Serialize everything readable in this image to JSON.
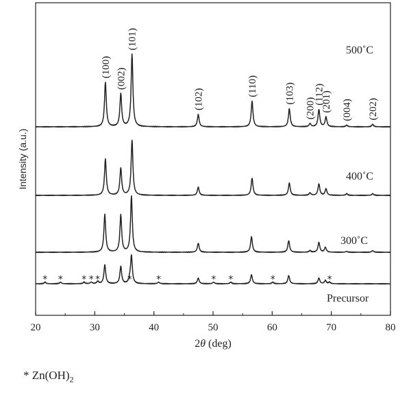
{
  "chart_data": {
    "type": "line",
    "title": "",
    "xlabel_prefix": "2",
    "xlabel_symbol": "θ",
    "xlabel_suffix": " (deg)",
    "ylabel": "Intensity (a.u.)",
    "xlim": [
      20,
      80
    ],
    "xticks": [
      20,
      30,
      40,
      50,
      60,
      70,
      80
    ],
    "grid": false,
    "series": [
      {
        "name": "500˚C",
        "offset": 0.0,
        "peaks": [
          [
            31.8,
            0.54
          ],
          [
            34.4,
            0.4
          ],
          [
            36.3,
            0.88
          ],
          [
            47.5,
            0.15
          ],
          [
            56.6,
            0.31
          ],
          [
            62.9,
            0.22
          ],
          [
            66.4,
            0.04
          ],
          [
            67.9,
            0.21
          ],
          [
            69.1,
            0.12
          ],
          [
            72.6,
            0.02
          ],
          [
            77.0,
            0.03
          ]
        ]
      },
      {
        "name": "400˚C",
        "offset": 0.0,
        "peaks": [
          [
            31.8,
            0.44
          ],
          [
            34.4,
            0.33
          ],
          [
            36.3,
            0.67
          ],
          [
            47.5,
            0.1
          ],
          [
            56.6,
            0.21
          ],
          [
            62.9,
            0.15
          ],
          [
            66.4,
            0.03
          ],
          [
            67.9,
            0.14
          ],
          [
            69.1,
            0.08
          ],
          [
            72.6,
            0.02
          ],
          [
            77.0,
            0.02
          ]
        ]
      },
      {
        "name": "300˚C",
        "offset": 0.0,
        "peaks": [
          [
            31.7,
            0.46
          ],
          [
            34.4,
            0.45
          ],
          [
            36.2,
            0.68
          ],
          [
            47.5,
            0.11
          ],
          [
            56.5,
            0.19
          ],
          [
            62.8,
            0.14
          ],
          [
            66.4,
            0.02
          ],
          [
            67.9,
            0.12
          ],
          [
            69.0,
            0.06
          ],
          [
            72.6,
            0.01
          ],
          [
            77.0,
            0.02
          ]
        ]
      },
      {
        "name": "Precursor",
        "offset": 0.0,
        "peaks": [
          [
            21.6,
            0.02
          ],
          [
            24.2,
            0.02
          ],
          [
            28.2,
            0.02
          ],
          [
            29.4,
            0.02
          ],
          [
            30.5,
            0.03
          ],
          [
            31.7,
            0.23
          ],
          [
            34.4,
            0.21
          ],
          [
            35.9,
            0.04
          ],
          [
            36.2,
            0.34
          ],
          [
            40.8,
            0.02
          ],
          [
            47.5,
            0.07
          ],
          [
            50.1,
            0.02
          ],
          [
            53.0,
            0.02
          ],
          [
            56.5,
            0.11
          ],
          [
            60.1,
            0.02
          ],
          [
            62.8,
            0.1
          ],
          [
            67.9,
            0.07
          ],
          [
            69.0,
            0.04
          ],
          [
            69.7,
            0.02
          ]
        ]
      }
    ],
    "hkl_labels": [
      {
        "x": 31.8,
        "text": "(100)"
      },
      {
        "x": 34.4,
        "text": "(002)"
      },
      {
        "x": 36.3,
        "text": "(101)"
      },
      {
        "x": 47.5,
        "text": "(102)"
      },
      {
        "x": 56.6,
        "text": "(110)"
      },
      {
        "x": 62.9,
        "text": "(103)"
      },
      {
        "x": 66.4,
        "text": "(200)"
      },
      {
        "x": 67.9,
        "text": "(112)"
      },
      {
        "x": 69.1,
        "text": "(201)"
      },
      {
        "x": 72.6,
        "text": "(004)"
      },
      {
        "x": 77.0,
        "text": "(202)"
      }
    ],
    "zn_oh2_markers": [
      21.6,
      24.2,
      28.2,
      29.4,
      30.5,
      35.9,
      40.8,
      50.1,
      53.0,
      60.1,
      69.7
    ],
    "marker_symbol": "*"
  },
  "legend": {
    "symbol": "*",
    "text": "Zn(OH)",
    "subscript": "2"
  }
}
